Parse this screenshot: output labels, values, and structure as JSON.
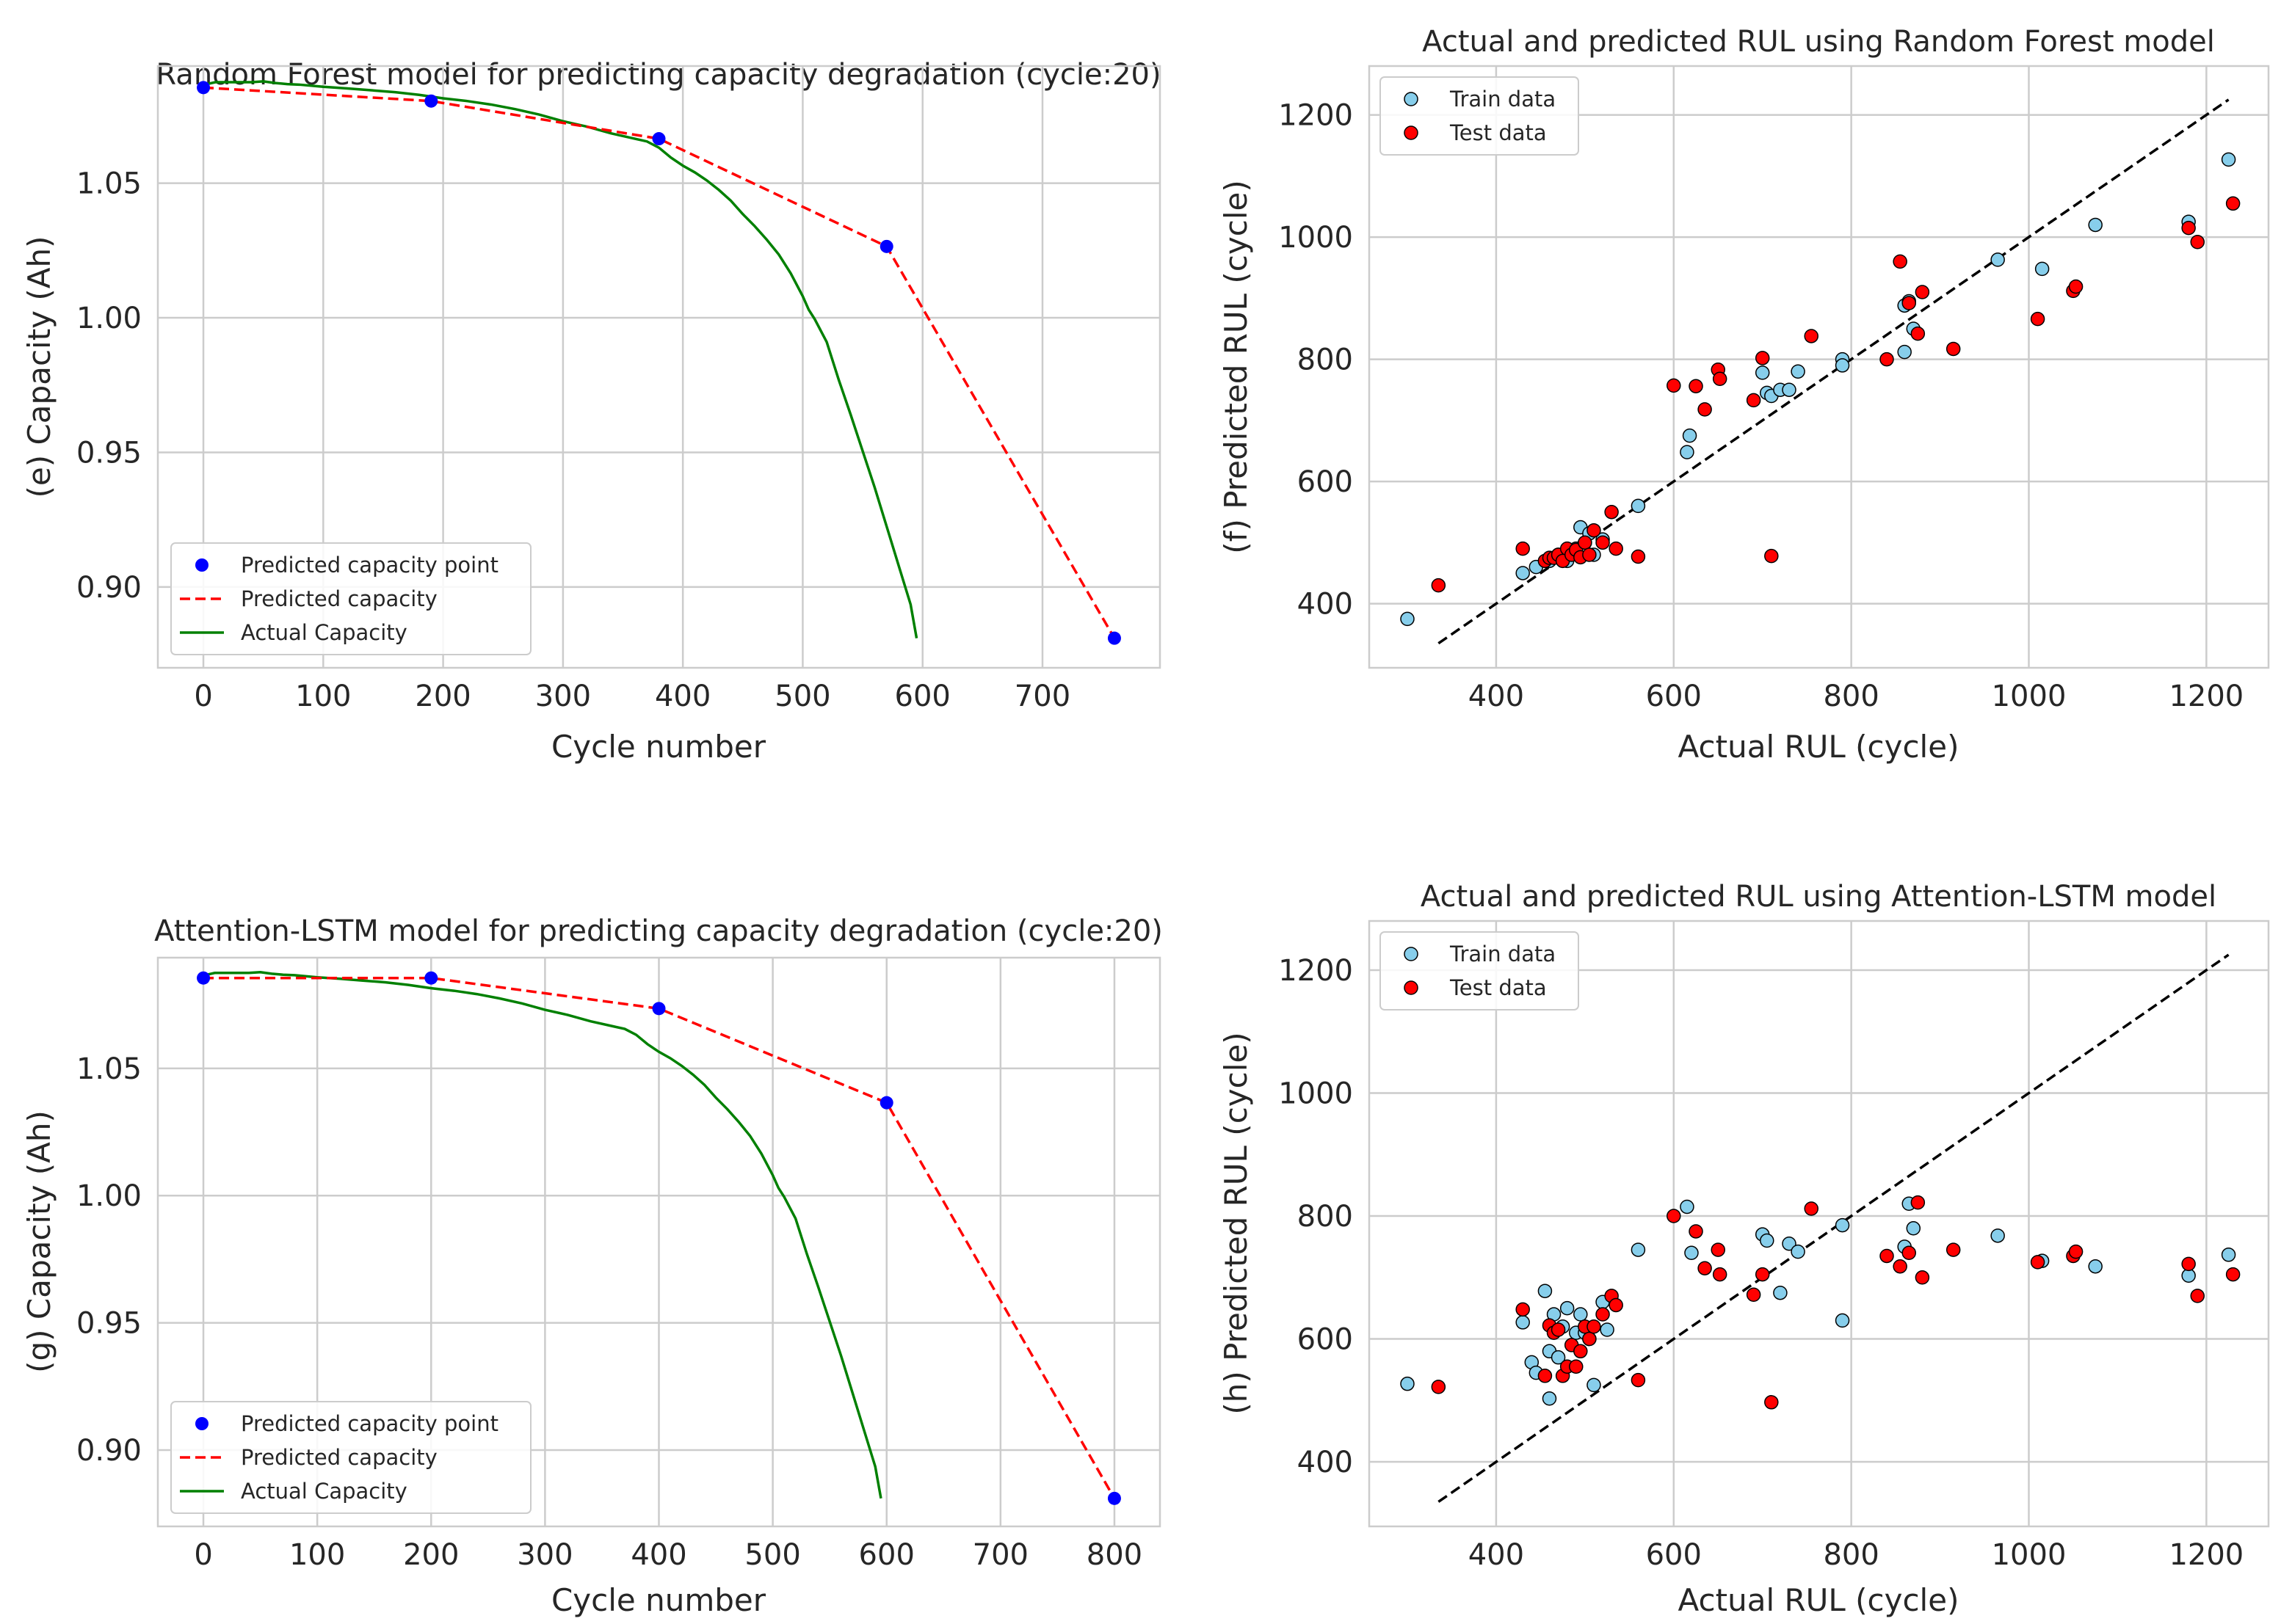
{
  "chart_data": [
    {
      "id": "e",
      "type": "line",
      "title": "Random Forest model for predicting capacity degradation (cycle:20)",
      "xlabel": "Cycle number",
      "ylabel": "(e) Capacity (Ah)",
      "xlim": [
        -38,
        798
      ],
      "ylim": [
        0.87,
        1.0935
      ],
      "xticks": [
        0,
        100,
        200,
        300,
        400,
        500,
        600,
        700
      ],
      "yticks": [
        0.9,
        0.95,
        1.0,
        1.05
      ],
      "ytick_labels": [
        "0.90",
        "0.95",
        "1.00",
        "1.05"
      ],
      "grid": true,
      "legend_position": "lower left",
      "legend": [
        "Predicted capacity point",
        "Predicted capacity",
        "Actual Capacity"
      ],
      "colors": {
        "points": "#0000ff",
        "predicted": "#ff0000",
        "actual": "#008000"
      },
      "predicted_points": {
        "x": [
          0,
          190,
          380,
          570,
          760
        ],
        "y": [
          1.0855,
          1.0805,
          1.0665,
          1.0265,
          0.881
        ]
      },
      "actual": {
        "x": [
          0,
          10,
          20,
          30,
          40,
          50,
          60,
          70,
          80,
          100,
          120,
          140,
          160,
          180,
          200,
          220,
          240,
          260,
          280,
          300,
          320,
          340,
          360,
          370,
          380,
          390,
          400,
          410,
          420,
          430,
          440,
          450,
          460,
          470,
          480,
          490,
          500,
          505,
          510,
          520,
          530,
          540,
          550,
          560,
          570,
          580,
          590,
          595
        ],
        "y": [
          1.0865,
          1.0875,
          1.0875,
          1.0875,
          1.0875,
          1.0878,
          1.0872,
          1.0868,
          1.0866,
          1.0858,
          1.0852,
          1.0845,
          1.0838,
          1.0828,
          1.0815,
          1.0805,
          1.0792,
          1.0775,
          1.0755,
          1.073,
          1.071,
          1.0685,
          1.0665,
          1.0655,
          1.0632,
          1.0595,
          1.0565,
          1.054,
          1.051,
          1.0475,
          1.0435,
          1.0385,
          1.034,
          1.029,
          1.0235,
          1.0165,
          1.008,
          1.003,
          0.9995,
          0.991,
          0.977,
          0.964,
          0.9505,
          0.937,
          0.9225,
          0.908,
          0.8935,
          0.881
        ]
      }
    },
    {
      "id": "f",
      "type": "scatter",
      "title": "Actual and predicted RUL using Random Forest model",
      "xlabel": "Actual RUL (cycle)",
      "ylabel": "(f) Predicted RUL (cycle)",
      "xlim": [
        257,
        1270
      ],
      "ylim": [
        295,
        1280
      ],
      "xticks": [
        400,
        600,
        800,
        1000,
        1200
      ],
      "yticks": [
        400,
        600,
        800,
        1000,
        1200
      ],
      "grid": true,
      "legend_position": "upper left",
      "legend": [
        "Train data",
        "Test data"
      ],
      "colors": {
        "train": "#87ceeb",
        "test": "#ff0000",
        "diagonal": "#000000"
      },
      "diagonal": [
        335,
        1225
      ],
      "train": {
        "x": [
          300,
          430,
          445,
          460,
          470,
          480,
          490,
          495,
          500,
          505,
          510,
          520,
          560,
          615,
          618,
          700,
          705,
          710,
          720,
          730,
          740,
          790,
          790,
          860,
          860,
          865,
          870,
          965,
          1015,
          1075,
          1180,
          1225
        ],
        "y": [
          375,
          450,
          460,
          470,
          480,
          470,
          490,
          525,
          500,
          515,
          480,
          505,
          560,
          648,
          675,
          778,
          745,
          740,
          750,
          750,
          780,
          800,
          790,
          888,
          812,
          895,
          850,
          963,
          948,
          1020,
          1025,
          1127
        ]
      },
      "test": {
        "x": [
          335,
          430,
          455,
          460,
          465,
          470,
          475,
          480,
          485,
          490,
          495,
          500,
          505,
          510,
          520,
          530,
          535,
          560,
          600,
          625,
          635,
          650,
          652,
          690,
          700,
          710,
          755,
          840,
          855,
          865,
          875,
          880,
          915,
          1010,
          1050,
          1053,
          1180,
          1190,
          1230
        ],
        "y": [
          430,
          490,
          470,
          475,
          475,
          480,
          470,
          490,
          480,
          488,
          476,
          500,
          480,
          520,
          500,
          550,
          490,
          477,
          757,
          756,
          718,
          783,
          768,
          733,
          802,
          478,
          838,
          800,
          960,
          892,
          842,
          910,
          817,
          866,
          912,
          919,
          1015,
          992,
          1055
        ]
      }
    },
    {
      "id": "g",
      "type": "line",
      "title": "Attention-LSTM model for predicting capacity degradation (cycle:20)",
      "xlabel": "Cycle number",
      "ylabel": "(g) Capacity (Ah)",
      "xlim": [
        -40,
        840
      ],
      "ylim": [
        0.87,
        1.0935
      ],
      "xticks": [
        0,
        100,
        200,
        300,
        400,
        500,
        600,
        700,
        800
      ],
      "yticks": [
        0.9,
        0.95,
        1.0,
        1.05
      ],
      "ytick_labels": [
        "0.90",
        "0.95",
        "1.00",
        "1.05"
      ],
      "grid": true,
      "legend_position": "lower left",
      "legend": [
        "Predicted capacity point",
        "Predicted capacity",
        "Actual Capacity"
      ],
      "colors": {
        "points": "#0000ff",
        "predicted": "#ff0000",
        "actual": "#008000"
      },
      "predicted_points": {
        "x": [
          0,
          200,
          400,
          600,
          800
        ],
        "y": [
          1.0855,
          1.0855,
          1.0735,
          1.0365,
          0.881
        ]
      },
      "actual": {
        "x": [
          0,
          10,
          20,
          30,
          40,
          50,
          60,
          70,
          80,
          100,
          120,
          140,
          160,
          180,
          200,
          220,
          240,
          260,
          280,
          300,
          320,
          340,
          360,
          370,
          380,
          390,
          400,
          410,
          420,
          430,
          440,
          450,
          460,
          470,
          480,
          490,
          500,
          505,
          510,
          520,
          530,
          540,
          550,
          560,
          570,
          580,
          590,
          595
        ],
        "y": [
          1.0865,
          1.0875,
          1.0875,
          1.0875,
          1.0875,
          1.0878,
          1.0872,
          1.0868,
          1.0866,
          1.0858,
          1.0852,
          1.0845,
          1.0838,
          1.0828,
          1.0815,
          1.0805,
          1.0792,
          1.0775,
          1.0755,
          1.073,
          1.071,
          1.0685,
          1.0665,
          1.0655,
          1.0632,
          1.0595,
          1.0565,
          1.054,
          1.051,
          1.0475,
          1.0435,
          1.0385,
          1.034,
          1.029,
          1.0235,
          1.0165,
          1.008,
          1.003,
          0.9995,
          0.991,
          0.977,
          0.964,
          0.9505,
          0.937,
          0.9225,
          0.908,
          0.8935,
          0.881
        ]
      }
    },
    {
      "id": "h",
      "type": "scatter",
      "title": "Actual and predicted RUL using Attention-LSTM model",
      "xlabel": "Actual RUL (cycle)",
      "ylabel": "(h) Predicted RUL (cycle)",
      "xlim": [
        257,
        1270
      ],
      "ylim": [
        295,
        1280
      ],
      "xticks": [
        400,
        600,
        800,
        1000,
        1200
      ],
      "yticks": [
        400,
        600,
        800,
        1000,
        1200
      ],
      "grid": true,
      "legend_position": "upper left",
      "legend": [
        "Train data",
        "Test data"
      ],
      "colors": {
        "train": "#87ceeb",
        "test": "#ff0000",
        "diagonal": "#000000"
      },
      "diagonal": [
        335,
        1225
      ],
      "train": {
        "x": [
          300,
          430,
          440,
          445,
          455,
          460,
          460,
          465,
          470,
          475,
          480,
          490,
          495,
          500,
          505,
          510,
          520,
          525,
          560,
          615,
          620,
          700,
          705,
          720,
          730,
          740,
          790,
          790,
          860,
          865,
          870,
          965,
          1015,
          1075,
          1180,
          1225
        ],
        "y": [
          527,
          627,
          562,
          545,
          678,
          580,
          503,
          640,
          570,
          620,
          650,
          610,
          640,
          610,
          600,
          525,
          660,
          615,
          745,
          815,
          740,
          770,
          760,
          675,
          755,
          742,
          630,
          785,
          750,
          820,
          780,
          768,
          727,
          718,
          703,
          737
        ]
      },
      "test": {
        "x": [
          335,
          430,
          455,
          460,
          465,
          470,
          475,
          480,
          485,
          490,
          495,
          500,
          505,
          510,
          520,
          530,
          535,
          560,
          600,
          625,
          635,
          650,
          652,
          690,
          700,
          710,
          755,
          840,
          855,
          865,
          875,
          880,
          915,
          1010,
          1050,
          1053,
          1180,
          1190,
          1230
        ],
        "y": [
          522,
          648,
          540,
          622,
          610,
          615,
          540,
          555,
          590,
          555,
          580,
          620,
          600,
          620,
          640,
          670,
          655,
          533,
          800,
          775,
          715,
          745,
          705,
          672,
          705,
          497,
          812,
          735,
          718,
          740,
          822,
          700,
          745,
          725,
          735,
          742,
          722,
          670,
          705
        ]
      }
    }
  ]
}
